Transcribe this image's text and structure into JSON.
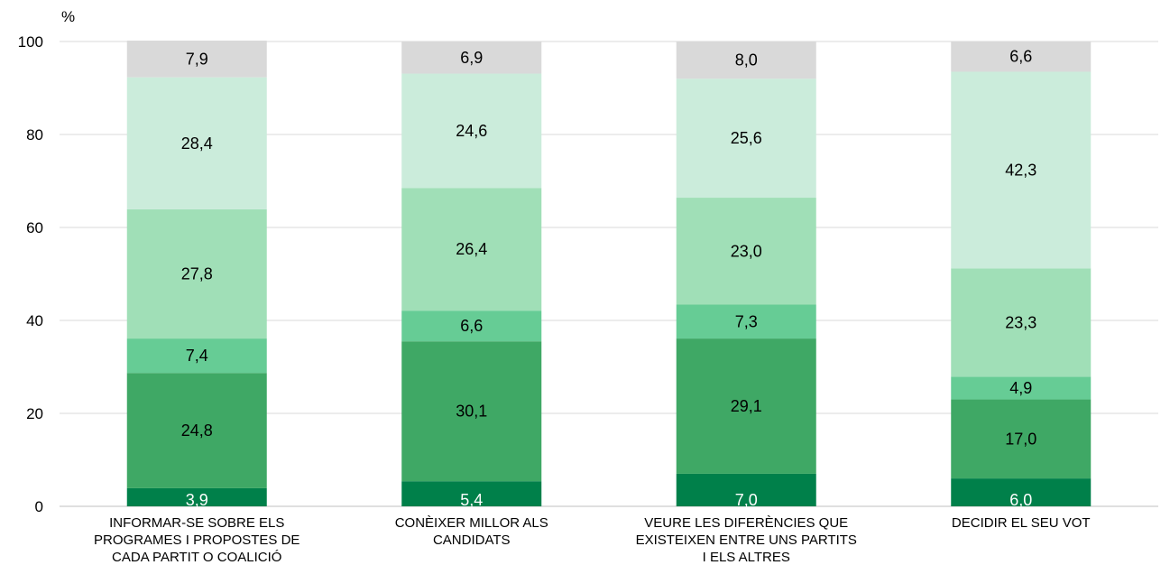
{
  "chart_data": {
    "type": "bar",
    "stacked": true,
    "yunit": "%",
    "ylim": [
      0,
      100
    ],
    "yticks": [
      0,
      20,
      40,
      60,
      80,
      100
    ],
    "grid": true,
    "categories": [
      [
        "INFORMAR-SE SOBRE ELS",
        "PROGRAMES I PROPOSTES DE",
        "CADA PARTIT O COALICIÓ"
      ],
      [
        "CONÈIXER MILLOR ALS",
        "CANDIDATS"
      ],
      [
        "VEURE LES DIFERÈNCIES QUE",
        "EXISTEIXEN ENTRE UNS PARTITS",
        "I ELS ALTRES"
      ],
      [
        "DECIDIR EL SEU VOT"
      ]
    ],
    "series": [
      {
        "values": [
          3.9,
          5.4,
          7.0,
          6.0
        ],
        "labels": [
          "3,9",
          "5,4",
          "7,0",
          "6,0"
        ],
        "color": "#00804a",
        "label_color": "#ffffff"
      },
      {
        "values": [
          24.8,
          30.1,
          29.1,
          17.0
        ],
        "labels": [
          "24,8",
          "30,1",
          "29,1",
          "17,0"
        ],
        "color": "#3fa865",
        "label_color": "#000000"
      },
      {
        "values": [
          7.4,
          6.6,
          7.3,
          4.9
        ],
        "labels": [
          "7,4",
          "6,6",
          "7,3",
          "4,9"
        ],
        "color": "#66cc95",
        "label_color": "#000000"
      },
      {
        "values": [
          27.8,
          26.4,
          23.0,
          23.3
        ],
        "labels": [
          "27,8",
          "26,4",
          "23,0",
          "23,3"
        ],
        "color": "#a0dfb7",
        "label_color": "#000000"
      },
      {
        "values": [
          28.4,
          24.6,
          25.6,
          42.3
        ],
        "labels": [
          "28,4",
          "24,6",
          "25,6",
          "42,3"
        ],
        "color": "#cbecdb",
        "label_color": "#000000"
      },
      {
        "values": [
          7.9,
          6.9,
          8.0,
          6.6
        ],
        "labels": [
          "7,9",
          "6,9",
          "8,0",
          "6,6"
        ],
        "color": "#d9d9d9",
        "label_color": "#000000"
      }
    ]
  }
}
